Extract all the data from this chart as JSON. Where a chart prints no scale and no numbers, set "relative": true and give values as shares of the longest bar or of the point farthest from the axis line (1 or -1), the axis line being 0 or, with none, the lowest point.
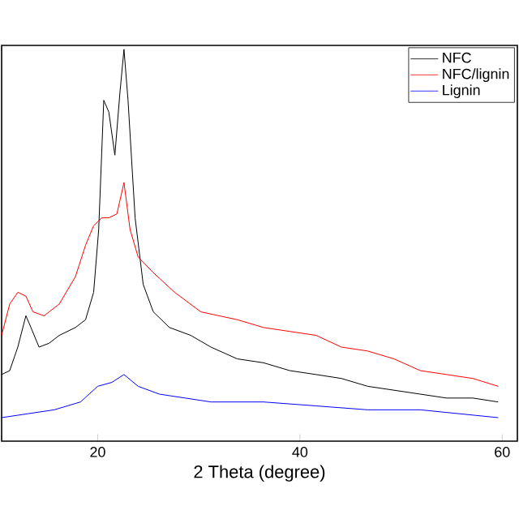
{
  "chart_data": {
    "type": "line",
    "xlabel": "2 Theta (degree)",
    "relative": true,
    "xlim": [
      10.5,
      61.5
    ],
    "xticks": [
      20,
      40,
      60
    ],
    "tick_labels": "x",
    "legend": "top right",
    "series": [
      {
        "name": "NFC",
        "color": "#000000",
        "x": [
          10.5,
          11.3,
          12.1,
          12.9,
          13.4,
          14.2,
          15.2,
          16.2,
          17.8,
          18.8,
          19.6,
          20.1,
          20.6,
          21.1,
          21.7,
          22.2,
          22.6,
          23.0,
          23.7,
          24.5,
          25.5,
          27.1,
          29.2,
          31.2,
          33.8,
          36.4,
          39.0,
          41.6,
          44.1,
          46.7,
          49.3,
          51.9,
          54.5,
          57.1,
          59.6
        ],
        "values": [
          0.17,
          0.18,
          0.24,
          0.32,
          0.29,
          0.24,
          0.25,
          0.27,
          0.29,
          0.31,
          0.38,
          0.54,
          0.87,
          0.84,
          0.73,
          0.89,
          1,
          0.87,
          0.57,
          0.4,
          0.33,
          0.29,
          0.27,
          0.24,
          0.21,
          0.2,
          0.18,
          0.17,
          0.16,
          0.14,
          0.13,
          0.12,
          0.11,
          0.11,
          0.1
        ]
      },
      {
        "name": "NFC/lignin",
        "color": "#ff0000",
        "x": [
          10.5,
          11.3,
          12.1,
          12.9,
          13.6,
          14.7,
          16.2,
          17.8,
          18.8,
          19.6,
          20.4,
          21.1,
          21.9,
          22.6,
          23.2,
          24.0,
          25.5,
          27.6,
          30.2,
          33.8,
          36.4,
          39.0,
          41.6,
          44.1,
          46.7,
          49.3,
          51.9,
          54.5,
          57.1,
          59.6
        ],
        "values": [
          0.27,
          0.35,
          0.38,
          0.37,
          0.33,
          0.32,
          0.35,
          0.42,
          0.5,
          0.55,
          0.57,
          0.57,
          0.58,
          0.66,
          0.54,
          0.47,
          0.43,
          0.38,
          0.33,
          0.31,
          0.29,
          0.28,
          0.27,
          0.24,
          0.23,
          0.21,
          0.18,
          0.17,
          0.16,
          0.14
        ]
      },
      {
        "name": "Lignin",
        "color": "#0000ff",
        "x": [
          10.5,
          13.1,
          15.7,
          18.3,
          20.0,
          21.4,
          22.6,
          24.0,
          26.1,
          31.2,
          36.4,
          41.6,
          46.7,
          51.9,
          59.6
        ],
        "values": [
          0.06,
          0.07,
          0.08,
          0.1,
          0.14,
          0.15,
          0.17,
          0.14,
          0.12,
          0.1,
          0.1,
          0.09,
          0.08,
          0.08,
          0.06
        ]
      }
    ]
  }
}
